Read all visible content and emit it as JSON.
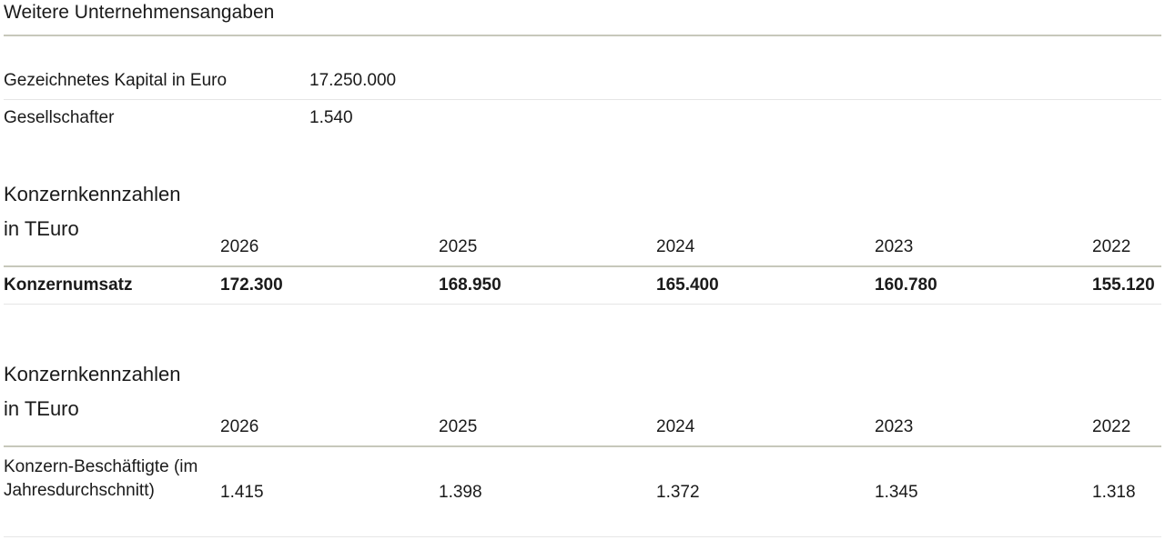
{
  "title": "Weitere Unternehmensangaben",
  "info_rows": [
    {
      "label": "Gezeichnetes Kapital in Euro",
      "value": "17.250.000"
    },
    {
      "label": "Gesellschafter",
      "value": "1.540"
    }
  ],
  "section1": {
    "heading": "Konzernkennzahlen",
    "unit": "in TEuro",
    "years": [
      "2026",
      "2025",
      "2024",
      "2023",
      "2022"
    ],
    "row_label": "Konzernumsatz",
    "values": [
      "172.300",
      "168.950",
      "165.400",
      "160.780",
      "155.120"
    ]
  },
  "section2": {
    "heading": "Konzernkennzahlen",
    "unit": "in TEuro",
    "years": [
      "2026",
      "2025",
      "2024",
      "2023",
      "2022"
    ],
    "row_label": "Konzern-Beschäftigte (im Jahresdurchschnitt)",
    "values": [
      "1.415",
      "1.398",
      "1.372",
      "1.345",
      "1.318"
    ]
  }
}
